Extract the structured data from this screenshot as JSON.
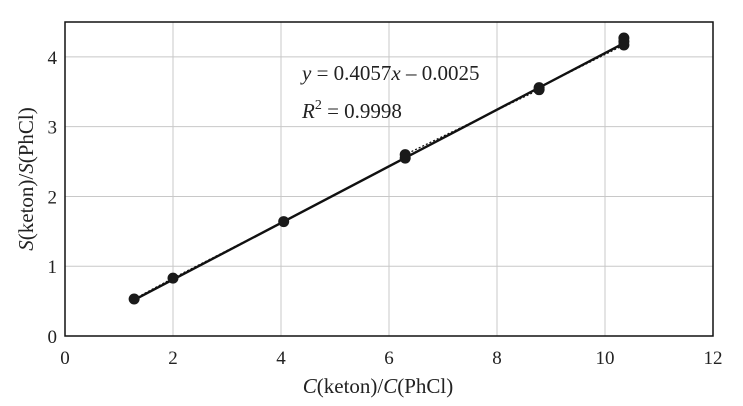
{
  "chart_data": {
    "type": "scatter",
    "title": "",
    "xlabel": "C(keton)/C(PhCl)",
    "ylabel": "S(keton)/S(PhCl)",
    "xlim": [
      0,
      12
    ],
    "ylim": [
      0,
      4.5
    ],
    "x_ticks": [
      0,
      2,
      4,
      6,
      8,
      10,
      12
    ],
    "y_ticks": [
      0,
      1,
      2,
      3,
      4
    ],
    "grid": true,
    "legend": "none",
    "series": [
      {
        "points": [
          {
            "x": 1.28,
            "y": 0.53
          },
          {
            "x": 2.0,
            "y": 0.83
          },
          {
            "x": 4.05,
            "y": 1.64
          },
          {
            "x": 6.3,
            "y": 2.55
          },
          {
            "x": 6.3,
            "y": 2.6
          },
          {
            "x": 8.78,
            "y": 3.53
          },
          {
            "x": 8.78,
            "y": 3.56
          },
          {
            "x": 10.35,
            "y": 4.17
          },
          {
            "x": 10.35,
            "y": 4.22
          },
          {
            "x": 10.35,
            "y": 4.27
          }
        ],
        "color": "#111111"
      }
    ],
    "trendline": {
      "slope": 0.4057,
      "intercept": -0.0025,
      "x_range": [
        1.28,
        10.35
      ],
      "equation_text": {
        "y": "y",
        "eq": " = 0.4057",
        "x": "x",
        "rest": " – 0.0025"
      },
      "r2_text": {
        "R": "R",
        "sup": "2",
        "rest": " = 0.9998"
      }
    },
    "colors": {
      "grid": "#c8c8c8",
      "frame": "#111111",
      "line": "#111111",
      "marker": "#1a1a1a"
    }
  }
}
